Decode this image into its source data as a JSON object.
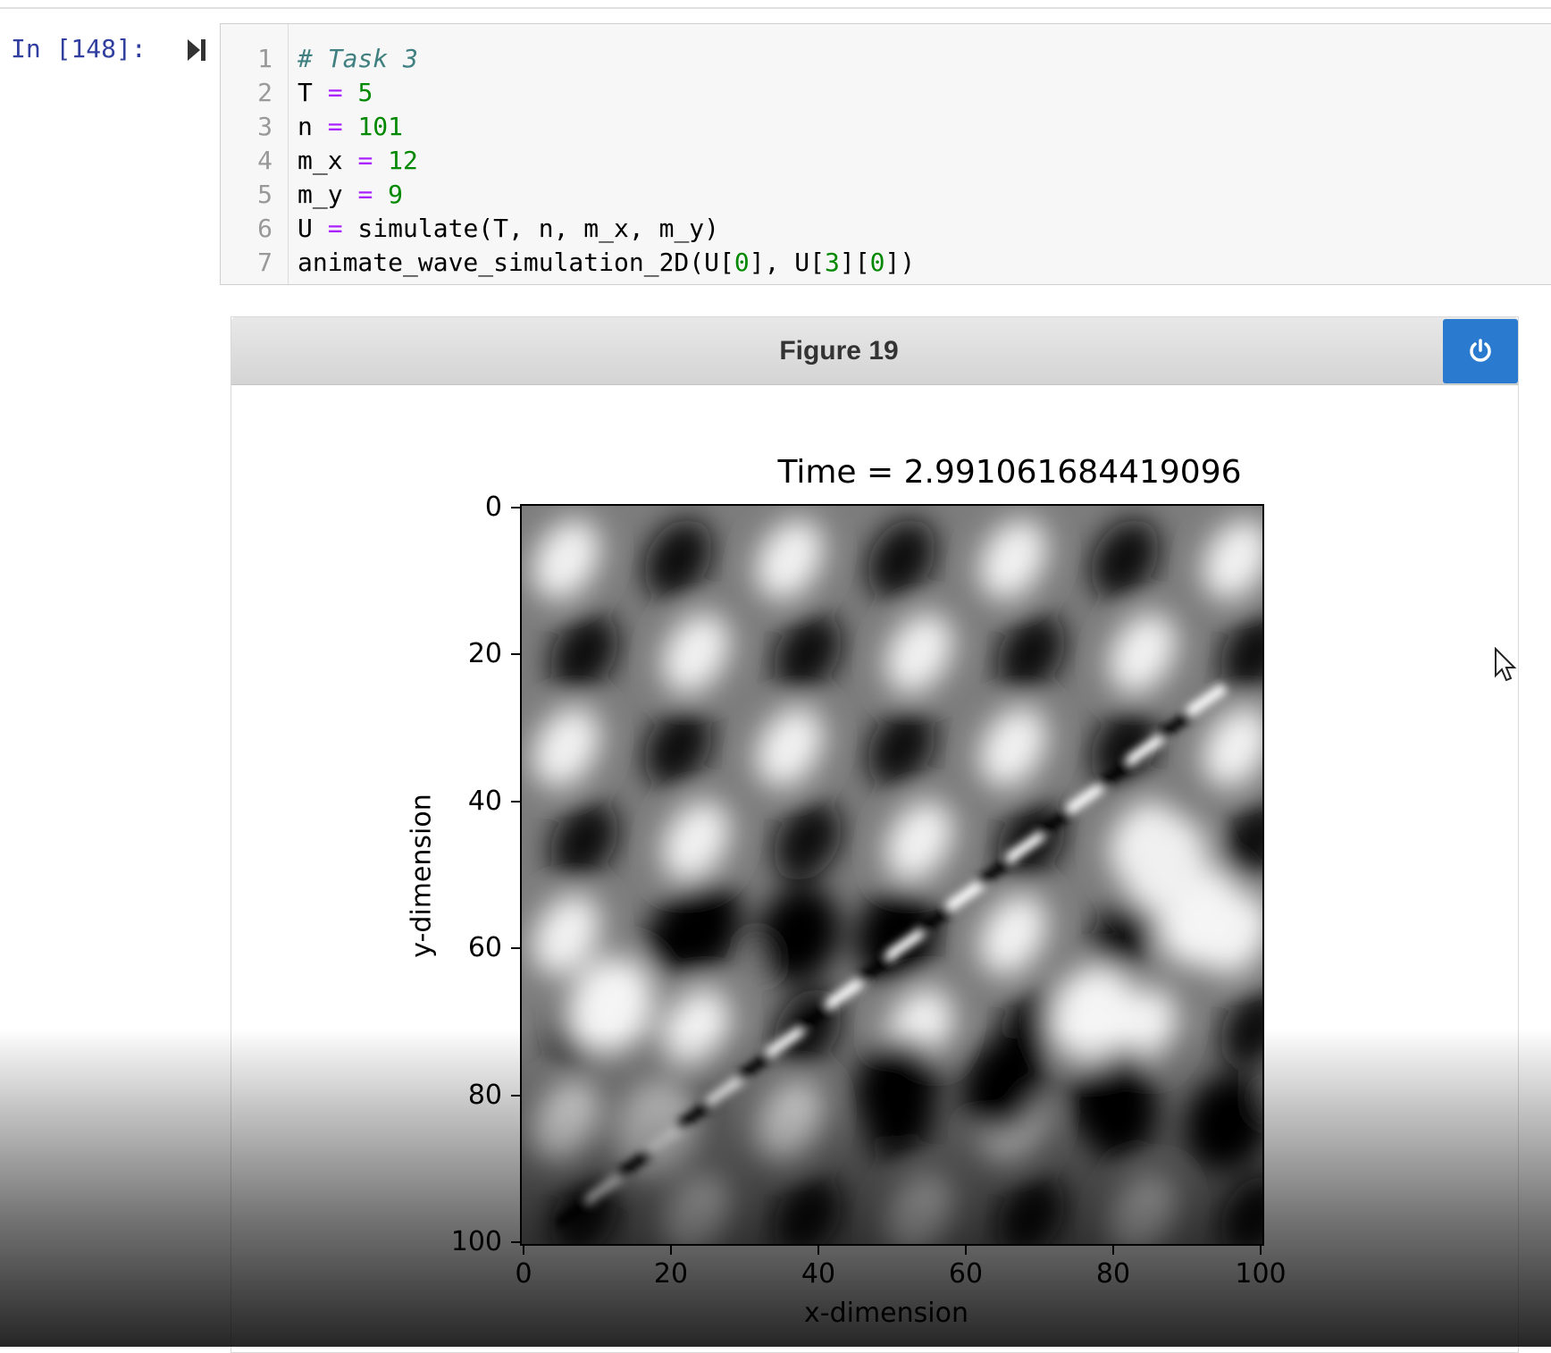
{
  "cell": {
    "prompt": "In [148]:",
    "lines": [
      {
        "num": "1",
        "parts": [
          {
            "t": "# Task 3",
            "c": "c-comment"
          }
        ]
      },
      {
        "num": "2",
        "parts": [
          {
            "t": "T ",
            "c": ""
          },
          {
            "t": "=",
            "c": "c-op"
          },
          {
            "t": " ",
            "c": ""
          },
          {
            "t": "5",
            "c": "c-num"
          }
        ]
      },
      {
        "num": "3",
        "parts": [
          {
            "t": "n ",
            "c": ""
          },
          {
            "t": "=",
            "c": "c-op"
          },
          {
            "t": " ",
            "c": ""
          },
          {
            "t": "101",
            "c": "c-num"
          }
        ]
      },
      {
        "num": "4",
        "parts": [
          {
            "t": "m_x ",
            "c": ""
          },
          {
            "t": "=",
            "c": "c-op"
          },
          {
            "t": " ",
            "c": ""
          },
          {
            "t": "12",
            "c": "c-num"
          }
        ]
      },
      {
        "num": "5",
        "parts": [
          {
            "t": "m_y ",
            "c": ""
          },
          {
            "t": "=",
            "c": "c-op"
          },
          {
            "t": " ",
            "c": ""
          },
          {
            "t": "9",
            "c": "c-num"
          }
        ]
      },
      {
        "num": "6",
        "parts": [
          {
            "t": "U ",
            "c": ""
          },
          {
            "t": "=",
            "c": "c-op"
          },
          {
            "t": " simulate(T, n, m_x, m_y)",
            "c": ""
          }
        ]
      },
      {
        "num": "7",
        "parts": [
          {
            "t": "animate_wave_simulation_2D(U[",
            "c": ""
          },
          {
            "t": "0",
            "c": "c-num"
          },
          {
            "t": "], U[",
            "c": ""
          },
          {
            "t": "3",
            "c": "c-num"
          },
          {
            "t": "][",
            "c": ""
          },
          {
            "t": "0",
            "c": "c-num"
          },
          {
            "t": "])",
            "c": ""
          }
        ]
      }
    ]
  },
  "figure": {
    "title": "Figure 19",
    "power_icon": "power-icon",
    "header_color": "#d4d4d4",
    "button_color": "#2a7bd0"
  },
  "chart_data": {
    "type": "heatmap",
    "title": "Time = 2.991061684419096",
    "xlabel": "x-dimension",
    "ylabel": "y-dimension",
    "xlim": [
      0,
      100
    ],
    "ylim": [
      100,
      0
    ],
    "xticks": [
      "0",
      "20",
      "40",
      "60",
      "80",
      "100"
    ],
    "yticks": [
      "0",
      "20",
      "40",
      "60",
      "80",
      "100"
    ],
    "colormap": "gray"
  }
}
